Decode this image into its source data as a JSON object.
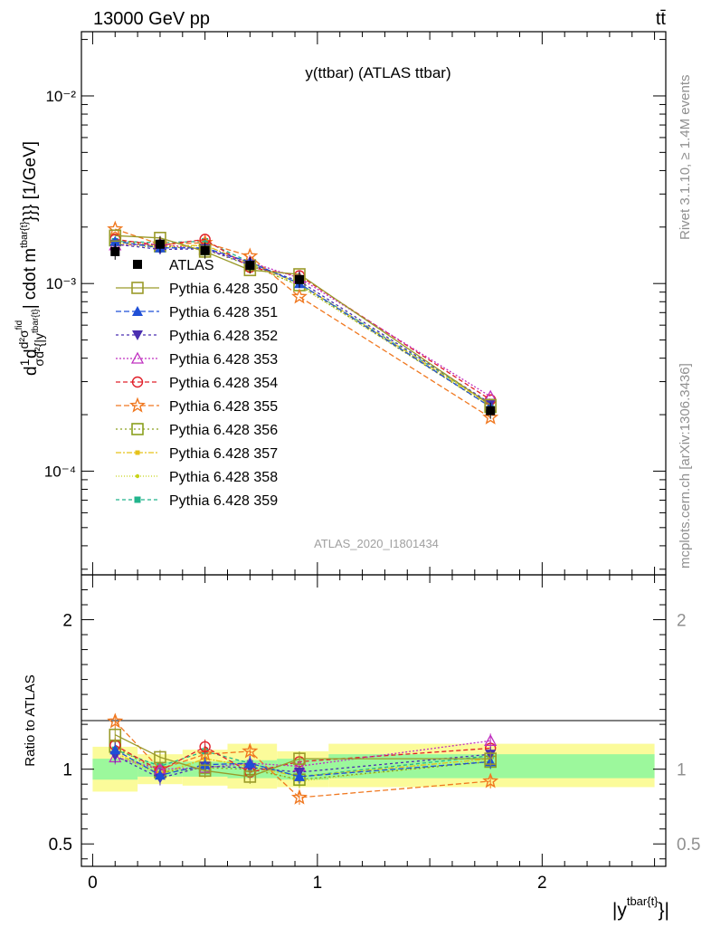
{
  "header": {
    "energy_label": "13000 GeV pp",
    "process_label": "tt̄"
  },
  "side_labels": {
    "rivet": "Rivet 3.1.10, ≥ 1.4M events",
    "mcplots": "mcplots.cern.ch [arXiv:1306.3436]"
  },
  "chart_data": [
    {
      "type": "scatter",
      "panel": "main",
      "title": "y(ttbar) (ATLAS ttbar)",
      "ylabel": "d¹/σ d²σ^fid / d²{|y^{tbar{t}}| cdot m^{tbar{t}}} [1/GeV]",
      "ylabel_parts": {
        "main": "d",
        "frac1_num": "1",
        "frac1_den": "σ",
        "d2": "d",
        "frac2_num": "d²σ",
        "frac2_sup": "fid",
        "frac2_den": "d²{|y",
        "frac2_den_sup": "tbar{t}",
        "tail": "| cdot m",
        "tail_sup": "tbar{t}",
        "unit": "}}} [1/GeV]"
      },
      "yscale": "log",
      "ylim": [
        2.8e-05,
        0.022
      ],
      "xlim": [
        -0.05,
        2.55
      ],
      "ytick_labels": [
        "10⁻⁴",
        "10⁻³",
        "10⁻²"
      ],
      "ytick_values": [
        0.0001,
        0.001,
        0.01
      ],
      "analysis_label": "ATLAS_2020_I1801434",
      "x": [
        0.1,
        0.3,
        0.5,
        0.7,
        0.92,
        1.77
      ],
      "series": [
        {
          "name": "ATLAS",
          "color": "#000000",
          "marker": "filled-square",
          "values": [
            0.00148,
            0.00162,
            0.0015,
            0.00125,
            0.00105,
            0.00021
          ]
        },
        {
          "name": "Pythia 6.428 350",
          "color": "#9a9a2a",
          "marker": "open-square",
          "dash": "solid",
          "values": [
            0.0018,
            0.00175,
            0.00148,
            0.00118,
            0.00112,
            0.000225
          ]
        },
        {
          "name": "Pythia 6.428 351",
          "color": "#1f4fd6",
          "marker": "filled-triangle-up",
          "dash": "6,3",
          "values": [
            0.00168,
            0.00155,
            0.00155,
            0.0013,
            0.001,
            0.00022
          ]
        },
        {
          "name": "Pythia 6.428 352",
          "color": "#4a2fb0",
          "marker": "filled-triangle-down",
          "dash": "3,3",
          "values": [
            0.00162,
            0.00152,
            0.00153,
            0.00126,
            0.00103,
            0.00023
          ]
        },
        {
          "name": "Pythia 6.428 353",
          "color": "#c030c0",
          "marker": "open-triangle-up",
          "dash": "2,2",
          "values": [
            0.0016,
            0.00162,
            0.00152,
            0.0013,
            0.00107,
            0.00025
          ]
        },
        {
          "name": "Pythia 6.428 354",
          "color": "#e0202a",
          "marker": "open-circle",
          "dash": "5,3",
          "values": [
            0.00172,
            0.0016,
            0.00172,
            0.00122,
            0.0011,
            0.00024
          ]
        },
        {
          "name": "Pythia 6.428 355",
          "color": "#f07820",
          "marker": "open-star",
          "dash": "6,3",
          "values": [
            0.00195,
            0.00162,
            0.00165,
            0.0014,
            0.00085,
            0.000193
          ]
        },
        {
          "name": "Pythia 6.428 356",
          "color": "#8aa01e",
          "marker": "open-square",
          "dash": "2,3",
          "values": [
            0.0017,
            0.00158,
            0.00152,
            0.00125,
            0.00098,
            0.00022
          ]
        },
        {
          "name": "Pythia 6.428 357",
          "color": "#e6c21a",
          "marker": "small-filled-square",
          "dash": "6,2,2,2",
          "values": [
            0.00165,
            0.00158,
            0.0016,
            0.00128,
            0.001,
            0.000225
          ]
        },
        {
          "name": "Pythia 6.428 358",
          "color": "#c8d41a",
          "marker": "small-dot",
          "dash": "1,2",
          "values": [
            0.00163,
            0.00155,
            0.0016,
            0.00127,
            0.00097,
            0.000222
          ]
        },
        {
          "name": "Pythia 6.428 359",
          "color": "#22b48c",
          "marker": "filled-square-small",
          "dash": "4,3",
          "values": [
            0.00168,
            0.00165,
            0.00168,
            0.0013,
            0.001,
            0.000228
          ]
        }
      ],
      "legend_position": "center-left"
    },
    {
      "type": "scatter",
      "panel": "ratio",
      "ylabel": "Ratio to ATLAS",
      "xlabel": "|y^{tbar{t}}|",
      "xlabel_main": "|y",
      "xlabel_sup": "tbar{t}",
      "xlabel_tail": "}|",
      "xlim": [
        -0.05,
        2.55
      ],
      "ylim": [
        0.35,
        2.3
      ],
      "ytick_values": [
        0.5,
        1,
        2
      ],
      "ytick_labels": [
        "0.5",
        "1",
        "2"
      ],
      "xtick_values": [
        0,
        1,
        2
      ],
      "xtick_labels": [
        "0",
        "1",
        "2"
      ],
      "bands": [
        {
          "x0": 0.0,
          "x1": 0.2,
          "inner": [
            0.93,
            1.07
          ],
          "outer": [
            0.85,
            1.15
          ]
        },
        {
          "x0": 0.2,
          "x1": 0.4,
          "inner": [
            0.95,
            1.05
          ],
          "outer": [
            0.9,
            1.1
          ]
        },
        {
          "x0": 0.4,
          "x1": 0.6,
          "inner": [
            0.95,
            1.05
          ],
          "outer": [
            0.89,
            1.13
          ]
        },
        {
          "x0": 0.6,
          "x1": 0.82,
          "inner": [
            0.94,
            1.06
          ],
          "outer": [
            0.87,
            1.17
          ]
        },
        {
          "x0": 0.82,
          "x1": 1.05,
          "inner": [
            0.93,
            1.07
          ],
          "outer": [
            0.88,
            1.12
          ]
        },
        {
          "x0": 1.05,
          "x1": 2.5,
          "inner": [
            0.94,
            1.1
          ],
          "outer": [
            0.88,
            1.17
          ]
        }
      ],
      "x": [
        0.1,
        0.3,
        0.5,
        0.7,
        0.92,
        1.77
      ],
      "series": [
        {
          "name": "Pythia 6.428 350",
          "values": [
            1.23,
            1.08,
            0.99,
            0.95,
            1.07,
            1.07
          ]
        },
        {
          "name": "Pythia 6.428 351",
          "values": [
            1.13,
            0.96,
            1.03,
            1.04,
            0.95,
            1.05
          ]
        },
        {
          "name": "Pythia 6.428 352",
          "values": [
            1.09,
            0.94,
            1.02,
            1.01,
            0.98,
            1.1
          ]
        },
        {
          "name": "Pythia 6.428 353",
          "values": [
            1.08,
            1.0,
            1.01,
            1.04,
            1.02,
            1.19
          ]
        },
        {
          "name": "Pythia 6.428 354",
          "values": [
            1.16,
            0.99,
            1.15,
            0.98,
            1.05,
            1.14
          ]
        },
        {
          "name": "Pythia 6.428 355",
          "values": [
            1.32,
            1.0,
            1.1,
            1.12,
            0.81,
            0.92
          ]
        },
        {
          "name": "Pythia 6.428 356",
          "values": [
            1.15,
            0.98,
            1.01,
            1.0,
            0.93,
            1.05
          ]
        },
        {
          "name": "Pythia 6.428 357",
          "values": [
            1.11,
            0.97,
            1.07,
            1.02,
            0.95,
            1.07
          ]
        },
        {
          "name": "Pythia 6.428 358",
          "values": [
            1.1,
            0.96,
            1.07,
            1.02,
            0.92,
            1.06
          ]
        },
        {
          "name": "Pythia 6.428 359",
          "values": [
            1.13,
            1.02,
            1.12,
            1.04,
            0.95,
            1.09
          ]
        }
      ]
    }
  ]
}
